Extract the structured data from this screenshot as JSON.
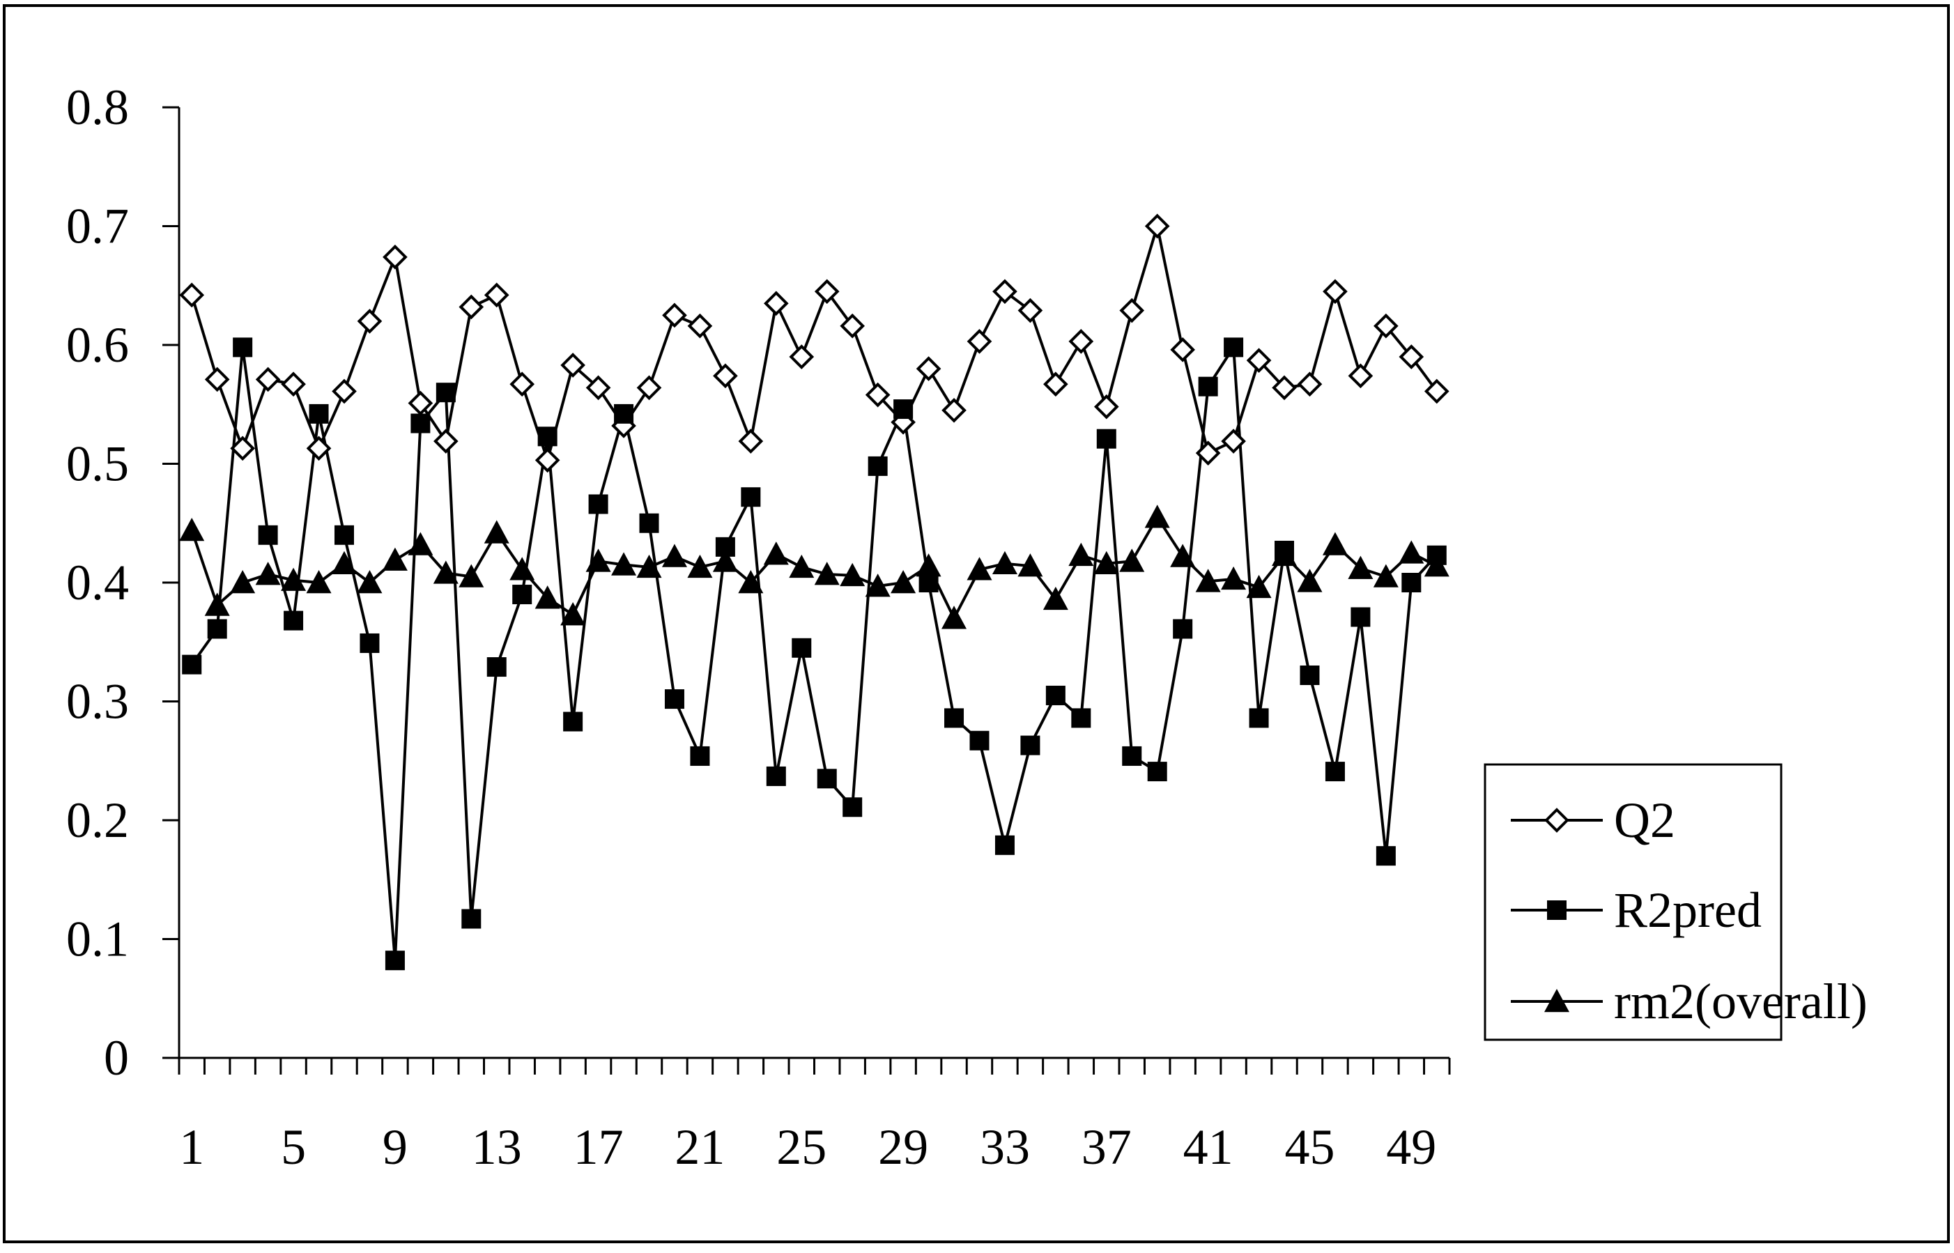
{
  "chart_data": {
    "type": "line",
    "title": "",
    "xlabel": "",
    "ylabel": "",
    "x": [
      1,
      2,
      3,
      4,
      5,
      6,
      7,
      8,
      9,
      10,
      11,
      12,
      13,
      14,
      15,
      16,
      17,
      18,
      19,
      20,
      21,
      22,
      23,
      24,
      25,
      26,
      27,
      28,
      29,
      30,
      31,
      32,
      33,
      34,
      35,
      36,
      37,
      38,
      39,
      40,
      41,
      42,
      43,
      44,
      45,
      46,
      47,
      48,
      49,
      50
    ],
    "xtick_labels": [
      "1",
      "5",
      "9",
      "13",
      "17",
      "21",
      "25",
      "29",
      "33",
      "37",
      "41",
      "45",
      "49"
    ],
    "xtick_values": [
      1,
      5,
      9,
      13,
      17,
      21,
      25,
      29,
      33,
      37,
      41,
      45,
      49
    ],
    "ylim": [
      0,
      0.8
    ],
    "ytick_labels": [
      "0",
      "0.1",
      "0.2",
      "0.3",
      "0.4",
      "0.5",
      "0.6",
      "0.7",
      "0.8"
    ],
    "ytick_values": [
      0,
      0.1,
      0.2,
      0.3,
      0.4,
      0.5,
      0.6,
      0.7,
      0.8
    ],
    "grid": false,
    "legend_position": "right",
    "series": [
      {
        "name": "Q2",
        "marker": "diamond-open",
        "values": [
          0.642,
          0.571,
          0.513,
          0.571,
          0.567,
          0.513,
          0.561,
          0.62,
          0.674,
          0.551,
          0.519,
          0.632,
          0.642,
          0.567,
          0.503,
          0.583,
          0.564,
          0.532,
          0.564,
          0.625,
          0.616,
          0.574,
          0.519,
          0.635,
          0.59,
          0.645,
          0.616,
          0.558,
          0.535,
          0.58,
          0.545,
          0.603,
          0.645,
          0.629,
          0.567,
          0.603,
          0.548,
          0.629,
          0.7,
          0.596,
          0.509,
          0.519,
          0.587,
          0.564,
          0.567,
          0.645,
          0.574,
          0.616,
          0.59,
          0.561
        ]
      },
      {
        "name": "R2pred",
        "marker": "square-filled",
        "values": [
          0.331,
          0.361,
          0.598,
          0.44,
          0.368,
          0.542,
          0.44,
          0.349,
          0.082,
          0.534,
          0.56,
          0.117,
          0.329,
          0.39,
          0.523,
          0.283,
          0.466,
          0.542,
          0.45,
          0.302,
          0.254,
          0.43,
          0.472,
          0.237,
          0.345,
          0.235,
          0.211,
          0.498,
          0.546,
          0.4,
          0.286,
          0.267,
          0.179,
          0.263,
          0.305,
          0.286,
          0.521,
          0.254,
          0.241,
          0.361,
          0.565,
          0.598,
          0.286,
          0.427,
          0.322,
          0.241,
          0.371,
          0.17,
          0.4,
          0.423
        ]
      },
      {
        "name": "rm2(overall)",
        "marker": "triangle-filled",
        "values": [
          0.444,
          0.381,
          0.4,
          0.407,
          0.402,
          0.4,
          0.416,
          0.4,
          0.419,
          0.432,
          0.408,
          0.405,
          0.442,
          0.411,
          0.387,
          0.373,
          0.418,
          0.415,
          0.413,
          0.422,
          0.413,
          0.418,
          0.4,
          0.424,
          0.413,
          0.407,
          0.406,
          0.397,
          0.4,
          0.414,
          0.37,
          0.411,
          0.416,
          0.414,
          0.386,
          0.423,
          0.416,
          0.418,
          0.455,
          0.422,
          0.401,
          0.403,
          0.396,
          0.423,
          0.401,
          0.432,
          0.412,
          0.405,
          0.425,
          0.414
        ]
      }
    ]
  }
}
